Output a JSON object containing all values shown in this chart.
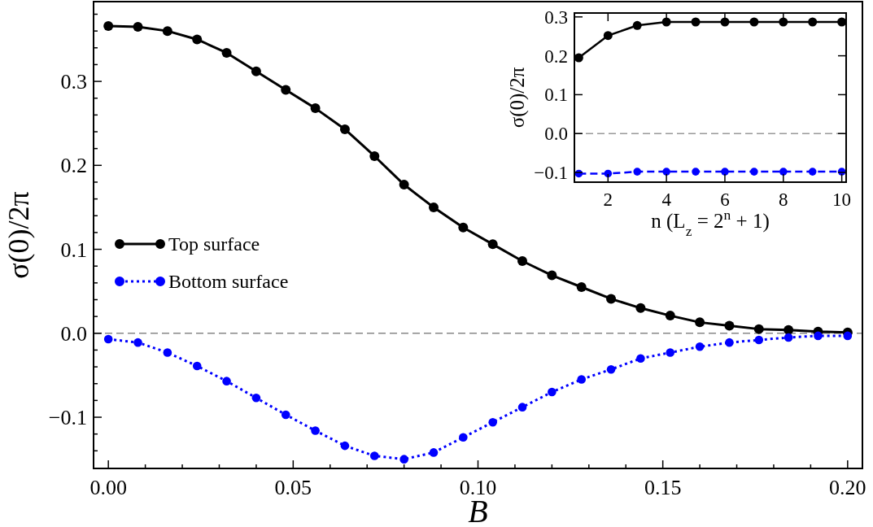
{
  "chart_data": [
    {
      "type": "line",
      "xlabel": "B",
      "ylabel": "σ(0)/2π",
      "x": [
        0,
        0.008,
        0.016,
        0.024,
        0.032,
        0.04,
        0.048,
        0.056,
        0.064,
        0.072,
        0.08,
        0.088,
        0.096,
        0.104,
        0.112,
        0.12,
        0.128,
        0.136,
        0.144,
        0.152,
        0.16,
        0.168,
        0.176,
        0.184,
        0.192,
        0.2
      ],
      "series": [
        {
          "name": "Top surface",
          "color": "#000000",
          "line_style": "solid",
          "values": [
            0.366,
            0.365,
            0.36,
            0.35,
            0.334,
            0.312,
            0.29,
            0.268,
            0.243,
            0.211,
            0.177,
            0.15,
            0.126,
            0.106,
            0.086,
            0.069,
            0.055,
            0.041,
            0.03,
            0.021,
            0.013,
            0.009,
            0.005,
            0.004,
            0.002,
            0.001
          ]
        },
        {
          "name": "Bottom surface",
          "color": "#0000ff",
          "line_style": "dotted",
          "values": [
            -0.007,
            -0.011,
            -0.023,
            -0.039,
            -0.057,
            -0.077,
            -0.097,
            -0.116,
            -0.134,
            -0.146,
            -0.15,
            -0.142,
            -0.124,
            -0.106,
            -0.088,
            -0.07,
            -0.055,
            -0.043,
            -0.03,
            -0.023,
            -0.016,
            -0.011,
            -0.008,
            -0.005,
            -0.003,
            -0.003
          ]
        }
      ],
      "xlim": [
        -0.004,
        0.204
      ],
      "ylim": [
        -0.161,
        0.395
      ],
      "xticks": [
        {
          "value": 0,
          "label": "0.00"
        },
        {
          "value": 0.01,
          "label": null
        },
        {
          "value": 0.02,
          "label": null
        },
        {
          "value": 0.03,
          "label": null
        },
        {
          "value": 0.04,
          "label": null
        },
        {
          "value": 0.05,
          "label": "0.05"
        },
        {
          "value": 0.06,
          "label": null
        },
        {
          "value": 0.07,
          "label": null
        },
        {
          "value": 0.08,
          "label": null
        },
        {
          "value": 0.09,
          "label": null
        },
        {
          "value": 0.1,
          "label": "0.10"
        },
        {
          "value": 0.11,
          "label": null
        },
        {
          "value": 0.12,
          "label": null
        },
        {
          "value": 0.13,
          "label": null
        },
        {
          "value": 0.14,
          "label": null
        },
        {
          "value": 0.15,
          "label": "0.15"
        },
        {
          "value": 0.16,
          "label": null
        },
        {
          "value": 0.17,
          "label": null
        },
        {
          "value": 0.18,
          "label": null
        },
        {
          "value": 0.19,
          "label": null
        },
        {
          "value": 0.2,
          "label": "0.20"
        }
      ],
      "yticks": [
        {
          "value": -0.14,
          "label": null
        },
        {
          "value": -0.12,
          "label": null
        },
        {
          "value": -0.1,
          "label": "−0.1"
        },
        {
          "value": -0.08,
          "label": null
        },
        {
          "value": -0.06,
          "label": null
        },
        {
          "value": -0.04,
          "label": null
        },
        {
          "value": -0.02,
          "label": null
        },
        {
          "value": 0,
          "label": "0.0"
        },
        {
          "value": 0.02,
          "label": null
        },
        {
          "value": 0.04,
          "label": null
        },
        {
          "value": 0.06,
          "label": null
        },
        {
          "value": 0.08,
          "label": null
        },
        {
          "value": 0.1,
          "label": "0.1"
        },
        {
          "value": 0.12,
          "label": null
        },
        {
          "value": 0.14,
          "label": null
        },
        {
          "value": 0.16,
          "label": null
        },
        {
          "value": 0.18,
          "label": null
        },
        {
          "value": 0.2,
          "label": "0.2"
        },
        {
          "value": 0.22,
          "label": null
        },
        {
          "value": 0.24,
          "label": null
        },
        {
          "value": 0.26,
          "label": null
        },
        {
          "value": 0.28,
          "label": null
        },
        {
          "value": 0.3,
          "label": "0.3"
        },
        {
          "value": 0.32,
          "label": null
        },
        {
          "value": 0.34,
          "label": null
        },
        {
          "value": 0.36,
          "label": null
        },
        {
          "value": 0.38,
          "label": null
        }
      ],
      "ref_lines": [
        {
          "axis": "y",
          "value": 0,
          "color": "#888888",
          "line_style": "dashed"
        }
      ],
      "marker": "circle",
      "legend": "left",
      "grid": false
    },
    {
      "type": "line",
      "xlabel": "n (L$_{z}$ = 2$^{n}$ + 1)",
      "ylabel": "σ(0)/2π",
      "x": [
        1,
        2,
        3,
        4,
        5,
        6,
        7,
        8,
        9,
        10
      ],
      "series": [
        {
          "color": "#000000",
          "line_style": "solid",
          "values": [
            0.195,
            0.252,
            0.278,
            0.287,
            0.287,
            0.287,
            0.287,
            0.287,
            0.287,
            0.287
          ]
        },
        {
          "color": "#0000ff",
          "line_style": "dashed",
          "values": [
            -0.103,
            -0.103,
            -0.098,
            -0.098,
            -0.098,
            -0.098,
            -0.098,
            -0.098,
            -0.098,
            -0.098
          ]
        }
      ],
      "xlim": [
        0.85,
        10.15
      ],
      "ylim": [
        -0.125,
        0.31
      ],
      "xticks": [
        2,
        4,
        6,
        8,
        10
      ],
      "yticks": [
        {
          "value": -0.1,
          "label": "−0.1"
        },
        {
          "value": 0,
          "label": "0.0"
        },
        {
          "value": 0.1,
          "label": "0.1"
        },
        {
          "value": 0.2,
          "label": "0.2"
        },
        {
          "value": 0.3,
          "label": "0.3"
        }
      ],
      "ref_lines": [
        {
          "axis": "y",
          "value": 0,
          "color": "#999999",
          "line_style": "dashed"
        }
      ],
      "marker": "circle",
      "legend": false,
      "grid": false
    }
  ]
}
